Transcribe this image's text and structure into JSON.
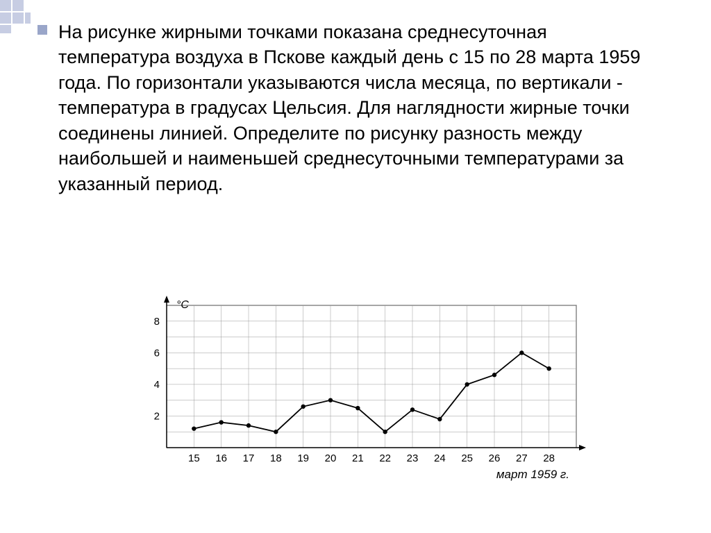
{
  "problem": {
    "text": "На рисунке жирными точками показана среднесуточная температура воздуха в Пскове каждый день с 15 по 28 марта 1959 года. По горизонтали указываются числа месяца, по вертикали - температура в градусах Цельсия. Для наглядности жирные точки соединены линией. Определите по рисунку разность между наибольшей и наименьшей среднесуточными температурами за указанный период."
  },
  "chart": {
    "type": "line",
    "ylabel": "°C",
    "xlabel": "март 1959 г.",
    "x_values": [
      15,
      16,
      17,
      18,
      19,
      20,
      21,
      22,
      23,
      24,
      25,
      26,
      27,
      28
    ],
    "y_values": [
      1.2,
      1.6,
      1.4,
      1.0,
      2.6,
      3.0,
      2.5,
      1.0,
      2.4,
      1.8,
      4.0,
      4.6,
      6.0,
      5.0
    ],
    "y_ticks": [
      2,
      4,
      6,
      8
    ],
    "ylim": [
      0,
      9
    ],
    "xlim": [
      14,
      29
    ],
    "grid_color": "#999999",
    "axis_color": "#000000",
    "line_color": "#000000",
    "point_color": "#000000",
    "background_color": "#ffffff",
    "line_width": 1.8,
    "point_radius": 3.2,
    "grid_width": 0.5,
    "axis_width": 1.5,
    "tick_fontsize": 15,
    "label_fontsize": 16,
    "xlabel_fontsize": 17,
    "label_font_style": "italic"
  },
  "decoration": {
    "side_color": "#c7cde3",
    "bullet_color": "#9aa6c9"
  }
}
